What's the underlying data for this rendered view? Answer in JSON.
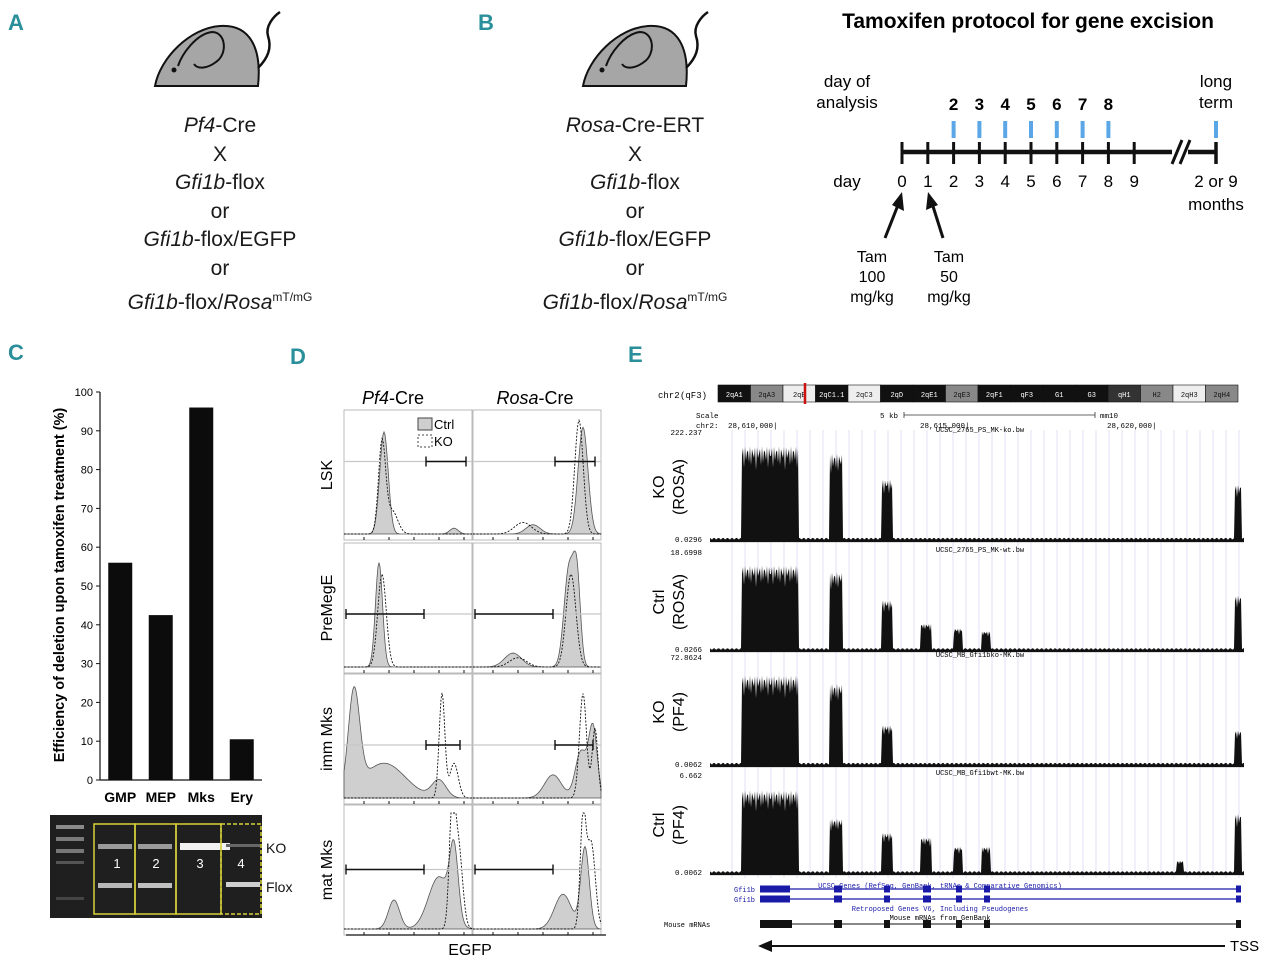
{
  "colors": {
    "panel_label": "#2a8f9a",
    "tick_blue": "#5aa6e6",
    "gel_box": "#d8d23a",
    "ucsc_blue": "#1a1aa8",
    "marker_red": "#cc1111"
  },
  "panels": {
    "a": "A",
    "b": "B",
    "c": "C",
    "d": "D",
    "e": "E"
  },
  "panel_a": {
    "line1_italic": "Pf4",
    "line1_rest": "-Cre",
    "x": "X",
    "line2_italic": "Gfi1b",
    "line2_rest": "-flox",
    "or1": "or",
    "line3_italic": "Gfi1b",
    "line3_rest": "-flox/EGFP",
    "or2": "or",
    "line4_italic": "Gfi1b",
    "line4_mid": "-flox/",
    "line4_italic2": "Rosa",
    "line4_sup": "mT/mG"
  },
  "panel_b": {
    "line1_italic": "Rosa",
    "line1_rest": "-Cre-ERT",
    "x": "X",
    "line2_italic": "Gfi1b",
    "line2_rest": "-flox",
    "or1": "or",
    "line3_italic": "Gfi1b",
    "line3_rest": "-flox/EGFP",
    "or2": "or",
    "line4_italic": "Gfi1b",
    "line4_mid": "-flox/",
    "line4_italic2": "Rosa",
    "line4_sup": "mT/mG"
  },
  "timeline": {
    "title": "Tamoxifen protocol for gene excision",
    "day_of": "day of",
    "analysis": "analysis",
    "analysis_days": [
      "2",
      "3",
      "4",
      "5",
      "6",
      "7",
      "8"
    ],
    "long": "long",
    "term": "term",
    "day_label": "day",
    "days": [
      "0",
      "1",
      "2",
      "3",
      "4",
      "5",
      "6",
      "7",
      "8",
      "9"
    ],
    "end_line1": "2 or 9",
    "end_line2": "months",
    "tam1": [
      "Tam",
      "100",
      "mg/kg"
    ],
    "tam2": [
      "Tam",
      "50",
      "mg/kg"
    ]
  },
  "chart_data": {
    "type": "bar",
    "title": "",
    "ylabel": "Efficiency of deletion upon tamoxifen treatment (%)",
    "xlabel": "",
    "categories": [
      "GMP",
      "MEP",
      "Mks",
      "Ery"
    ],
    "values": [
      56,
      42.5,
      96,
      10.5
    ],
    "ylim": [
      0,
      100
    ],
    "yticks": [
      "0",
      "10",
      "20",
      "30",
      "40",
      "50",
      "60",
      "70",
      "80",
      "90",
      "100"
    ]
  },
  "gel": {
    "lanes": [
      "1",
      "2",
      "3",
      "4"
    ],
    "ko": "KO",
    "flox": "Flox"
  },
  "flow": {
    "col1_italic": "Pf4",
    "col1_rest": "-Cre",
    "col2_italic": "Rosa",
    "col2_rest": "-Cre",
    "legend_ctrl": "Ctrl",
    "legend_ko": "KO",
    "rows": [
      "LSK",
      "PreMegE",
      "imm Mks",
      "mat Mks"
    ],
    "xlabel": "EGFP"
  },
  "browser": {
    "chrom": "chr2",
    "band": "(qF3)",
    "bands": [
      "2qA1",
      "2qA3",
      "2qB",
      "2qC1.1",
      "2qC3",
      "2qD",
      "2qE1",
      "2qE3",
      "2qF1",
      "qF3",
      "G1",
      "G3",
      "qH1",
      "H2",
      "2qH3",
      "2qH4"
    ],
    "scale_label": "Scale",
    "chr_label": "chr2:",
    "scale_value": "5 kb",
    "assembly": "mm10",
    "coords": [
      "28,610,000|",
      "28,615,000|",
      "28,620,000|"
    ],
    "tracks": [
      {
        "name_line1": "KO",
        "name_line2": "(ROSA)",
        "file": "UCSC_2765_PS_MK-ko.bw",
        "max": "222.237",
        "min": "0.0296"
      },
      {
        "name_line1": "Ctrl",
        "name_line2": "(ROSA)",
        "file": "UCSC_2765_PS_MK-wt.bw",
        "max": "18.6998",
        "min": "0.0266"
      },
      {
        "name_line1": "KO",
        "name_line2": "(PF4)",
        "file": "UCSC_MB_Gfi1bko-MK.bw",
        "max": "72.8624",
        "min": "0.0062"
      },
      {
        "name_line1": "Ctrl",
        "name_line2": "(PF4)",
        "file": "UCSC_MB_Gfi1bwt-MK.bw",
        "max": "6.662",
        "min": "0.0062"
      }
    ],
    "genes_title": "UCSC Genes (RefSeq, GenBank, tRNAs & Comparative Genomics)",
    "gene1": "Gfi1b",
    "gene2": "Gfi1b",
    "retro": "Retroposed Genes V6, Including Pseudogenes",
    "mrna_title": "Mouse mRNAs from GenBank",
    "mrna_label": "Mouse mRNAs",
    "tss": "TSS"
  }
}
